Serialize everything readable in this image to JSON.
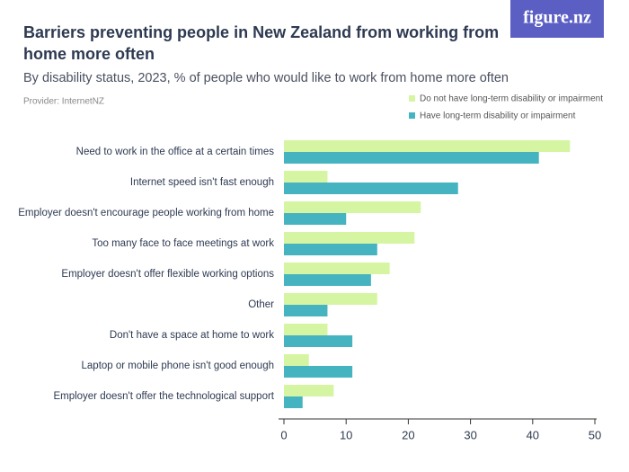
{
  "logo": "figure.nz",
  "chart_data": {
    "type": "hbar",
    "title": [
      "Barriers preventing people in New Zealand from working from",
      "home more often"
    ],
    "subtitle": "By disability status, 2023, % of people who would like to work from home more often",
    "provider": "Provider: InternetNZ",
    "categories": [
      "Need to work in the office at a certain times",
      "Internet speed isn't fast enough",
      "Employer doesn't encourage people working from home",
      "Too many face to face meetings at work",
      "Employer doesn't offer flexible working options",
      "Other",
      "Don't have a space at home to work",
      "Laptop or mobile phone isn't good enough",
      "Employer doesn't offer the technological support"
    ],
    "series": [
      {
        "name": "Do not have long-term disability or impairment",
        "color": "#d5f5a2",
        "values": [
          46,
          7,
          22,
          21,
          17,
          15,
          7,
          4,
          8
        ]
      },
      {
        "name": "Have long-term disability or impairment",
        "color": "#46b4c0",
        "values": [
          41,
          28,
          10,
          15,
          14,
          7,
          11,
          11,
          3
        ]
      }
    ],
    "xlim": [
      0,
      50
    ],
    "xticks": [
      0,
      10,
      20,
      30,
      40,
      50
    ],
    "legend": "top-right"
  }
}
